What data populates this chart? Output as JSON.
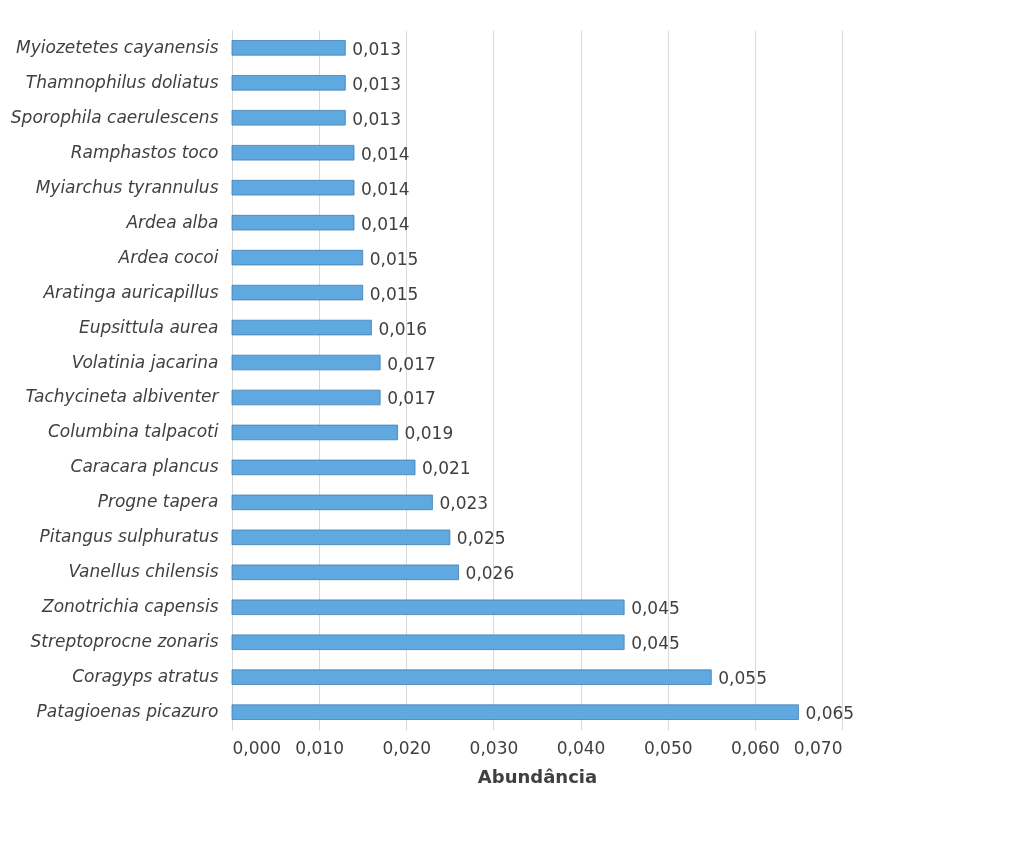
{
  "chart_data": {
    "type": "bar",
    "orientation": "horizontal",
    "xlabel": "Abundância",
    "categories": [
      "Myiozetetes cayanensis",
      "Thamnophilus doliatus",
      "Sporophila caerulescens",
      "Ramphastos toco",
      "Myiarchus tyrannulus",
      "Ardea alba",
      "Ardea cocoi",
      "Aratinga auricapillus",
      "Eupsittula aurea",
      "Volatinia jacarina",
      "Tachycineta albiventer",
      "Columbina talpacoti",
      "Caracara plancus",
      "Progne tapera",
      "Pitangus sulphuratus",
      "Vanellus chilensis",
      "Zonotrichia capensis",
      "Streptoprocne zonaris",
      "Coragyps atratus",
      "Patagioenas picazuro"
    ],
    "values": [
      0.013,
      0.013,
      0.013,
      0.014,
      0.014,
      0.014,
      0.015,
      0.015,
      0.016,
      0.017,
      0.017,
      0.019,
      0.021,
      0.023,
      0.025,
      0.026,
      0.045,
      0.045,
      0.055,
      0.065
    ],
    "value_labels": [
      "0,013",
      "0,013",
      "0,013",
      "0,014",
      "0,014",
      "0,014",
      "0,015",
      "0,015",
      "0,016",
      "0,017",
      "0,017",
      "0,019",
      "0,021",
      "0,023",
      "0,025",
      "0,026",
      "0,045",
      "0,045",
      "0,055",
      "0,065"
    ],
    "color": "#5fa8e0",
    "xlim": [
      0,
      0.07
    ],
    "xticks": [
      {
        "value": 0,
        "label": "0,000"
      },
      {
        "value": 0.01,
        "label": "0,010"
      },
      {
        "value": 0.02,
        "label": "0,020"
      },
      {
        "value": 0.03,
        "label": "0,030"
      },
      {
        "value": 0.04,
        "label": "0,040"
      },
      {
        "value": 0.05,
        "label": "0,050"
      },
      {
        "value": 0.06,
        "label": "0,060"
      },
      {
        "value": 0.07,
        "label": "0,070"
      }
    ],
    "grid": "x"
  }
}
